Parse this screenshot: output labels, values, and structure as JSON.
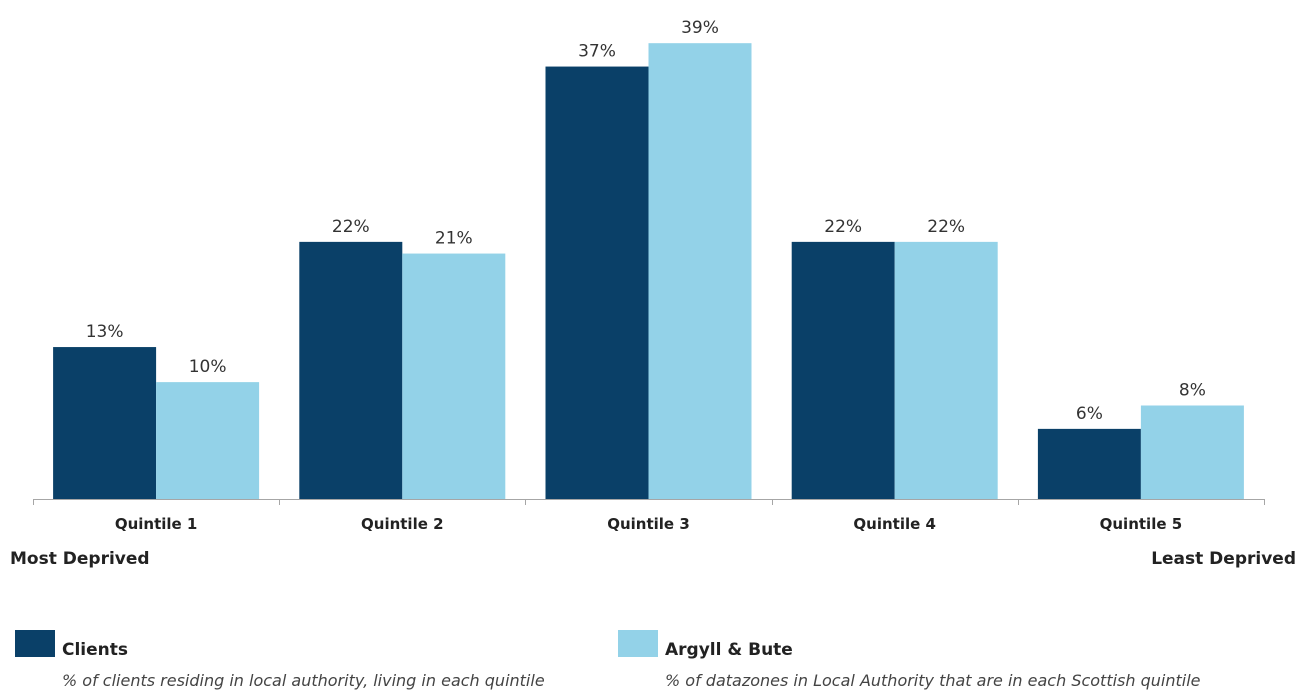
{
  "chart_data": {
    "type": "bar",
    "categories": [
      "Quintile 1",
      "Quintile 2",
      "Quintile 3",
      "Quintile 4",
      "Quintile 5"
    ],
    "series": [
      {
        "name": "Clients",
        "values": [
          13,
          22,
          37,
          22,
          6
        ],
        "labels": [
          "13%",
          "22%",
          "37%",
          "22%",
          "6%"
        ],
        "color": "#0a4068"
      },
      {
        "name": "Argyll & Bute",
        "values": [
          10,
          21,
          39,
          22,
          8
        ],
        "labels": [
          "10%",
          "21%",
          "39%",
          "22%",
          "8%"
        ],
        "color": "#93d2e8"
      }
    ],
    "ylim": [
      0,
      39.7
    ],
    "grid": false,
    "legend_position": "bottom"
  },
  "axis_ends": {
    "left": "Most Deprived",
    "right": "Least Deprived"
  },
  "legend": [
    {
      "name": "Clients",
      "description": "% of clients residing in local authority, living in each quintile",
      "color": "#0a4068"
    },
    {
      "name": "Argyll & Bute",
      "description": "% of datazones in Local Authority that are in each Scottish quintile",
      "color": "#93d2e8"
    }
  ]
}
